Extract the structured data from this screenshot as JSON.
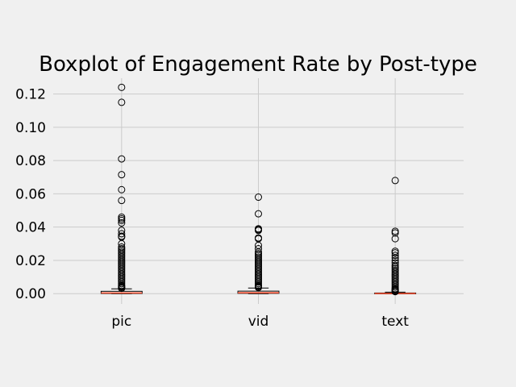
{
  "chart_data": {
    "type": "boxplot",
    "title": "Boxplot of Engagement Rate by Post-type",
    "xlabel": "",
    "ylabel": "",
    "categories": [
      "pic",
      "vid",
      "text"
    ],
    "ylim": [
      -0.0062,
      0.1295
    ],
    "yticks": [
      0.0,
      0.02,
      0.04,
      0.06,
      0.08,
      0.1,
      0.12
    ],
    "ytick_labels": [
      "0.00",
      "0.02",
      "0.04",
      "0.06",
      "0.08",
      "0.10",
      "0.12"
    ],
    "grid": true,
    "legend": "none",
    "colors": {
      "background": "#f0f0f0",
      "grid": "#cbcbcb",
      "box": "#000000",
      "median": "#fc4f30",
      "flier": "#000000"
    },
    "boxes": [
      {
        "category": "pic",
        "whislo": 0.0,
        "q1": 0.0001,
        "median": 0.0004,
        "q3": 0.0014,
        "whishi": 0.0029,
        "fliers": [
          0.124,
          0.115,
          0.081,
          0.0715,
          0.0625,
          0.056,
          0.046,
          0.045,
          0.044,
          0.0425,
          0.038,
          0.036,
          0.0345,
          0.034,
          0.03,
          0.028,
          0.027,
          0.026,
          0.025,
          0.024,
          0.023,
          0.022,
          0.021,
          0.02,
          0.019,
          0.018,
          0.017,
          0.016,
          0.015,
          0.014,
          0.013,
          0.012,
          0.011,
          0.01,
          0.009,
          0.008,
          0.007,
          0.006,
          0.005,
          0.0045,
          0.004,
          0.0035,
          0.0032
        ]
      },
      {
        "category": "vid",
        "whislo": 0.0,
        "q1": 0.0002,
        "median": 0.0005,
        "q3": 0.0015,
        "whishi": 0.0034,
        "fliers": [
          0.058,
          0.048,
          0.039,
          0.0385,
          0.038,
          0.0335,
          0.033,
          0.029,
          0.027,
          0.025,
          0.024,
          0.023,
          0.022,
          0.021,
          0.02,
          0.019,
          0.018,
          0.017,
          0.016,
          0.015,
          0.014,
          0.013,
          0.012,
          0.011,
          0.01,
          0.009,
          0.008,
          0.007,
          0.006,
          0.005,
          0.0045,
          0.004,
          0.0037
        ]
      },
      {
        "category": "text",
        "whislo": 0.0,
        "q1": 0.0,
        "median": 0.0001,
        "q3": 0.0004,
        "whishi": 0.0009,
        "fliers": [
          0.068,
          0.0375,
          0.0365,
          0.033,
          0.0255,
          0.0245,
          0.023,
          0.0215,
          0.02,
          0.0185,
          0.017,
          0.016,
          0.015,
          0.014,
          0.013,
          0.012,
          0.011,
          0.01,
          0.009,
          0.008,
          0.007,
          0.006,
          0.005,
          0.004,
          0.003,
          0.0025,
          0.002,
          0.0015,
          0.0012
        ]
      }
    ]
  }
}
